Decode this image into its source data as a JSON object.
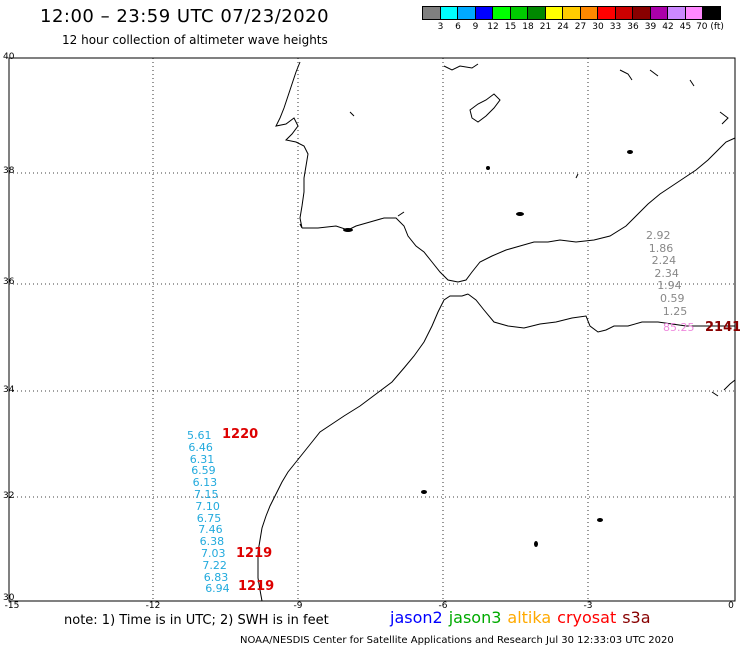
{
  "header": {
    "title": "12:00 – 23:59 UTC 07/23/2020",
    "subtitle": "12 hour collection of altimeter wave heights"
  },
  "colorbar": {
    "colors": [
      "#808080",
      "#00ffff",
      "#00aaff",
      "#0000ff",
      "#00ff00",
      "#00cc00",
      "#008800",
      "#ffff00",
      "#ffcc00",
      "#ff8800",
      "#ff0000",
      "#cc0000",
      "#880000",
      "#aa00aa",
      "#cc88ff",
      "#ff88ff",
      "#000000"
    ],
    "labels": [
      "3",
      "6",
      "9",
      "12",
      "15",
      "18",
      "21",
      "24",
      "27",
      "30",
      "33",
      "36",
      "39",
      "42",
      "45",
      "70 (ft)"
    ]
  },
  "axes": {
    "lat_labels": [
      "40",
      "38",
      "36",
      "34",
      "32",
      "30"
    ],
    "lon_labels": [
      "-15",
      "-12",
      "-9",
      "-6",
      "-3",
      "0"
    ]
  },
  "track_west": {
    "color": "#22aadd",
    "values": [
      "5.61",
      "6.46",
      "6.31",
      "6.59",
      "6.13",
      "7.15",
      "7.10",
      "6.75",
      "7.46",
      "6.38",
      "7.03",
      "7.22",
      "6.83",
      "6.94"
    ],
    "times": [
      "1220",
      "1219",
      "1219"
    ]
  },
  "track_east": {
    "color": "#888888",
    "values": [
      "2.92",
      "1.86",
      "2.24",
      "2.34",
      "1.94",
      "0.59",
      "1.25"
    ],
    "last_value": "85.25",
    "last_color": "#ee88dd",
    "time": "2141"
  },
  "footer": {
    "note": "note: 1) Time is in UTC; 2) SWH is in feet",
    "legend": [
      {
        "label": "jason2",
        "color": "#0000ff"
      },
      {
        "label": "jason3",
        "color": "#00aa00"
      },
      {
        "label": "altika",
        "color": "#ffaa00"
      },
      {
        "label": "cryosat",
        "color": "#ff0000"
      },
      {
        "label": "s3a",
        "color": "#880000"
      }
    ],
    "credit": "NOAA/NESDIS Center for Satellite Applications and Research   Jul 30 12:33:03 UTC 2020"
  }
}
